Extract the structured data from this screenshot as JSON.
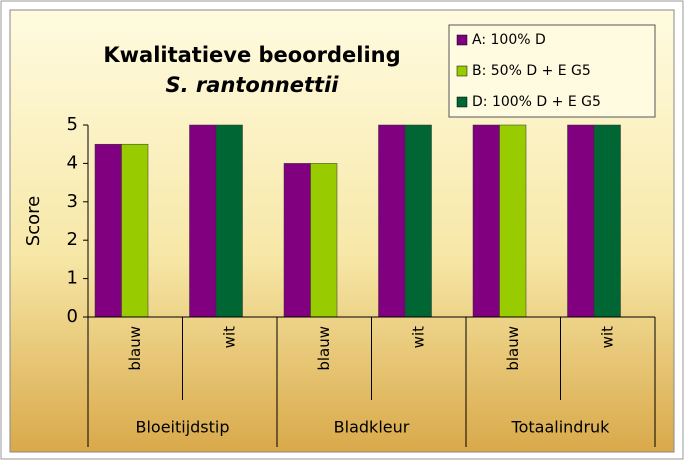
{
  "chart_data": {
    "type": "bar",
    "title": "Kwalitatieve beoordeling",
    "subtitle": "S. rantonnettii",
    "y_label": "Score",
    "categories": [
      "blauw",
      "wit",
      "blauw",
      "wit",
      "blauw",
      "wit"
    ],
    "groups": [
      "Bloeitijdstip",
      "Bladkleur",
      "Totaalindruk"
    ],
    "series": [
      {
        "name": "A: 100% D",
        "color": "#800080",
        "values": [
          4.5,
          5,
          4,
          5,
          5,
          5
        ]
      },
      {
        "name": "B: 50% D + E G5",
        "color": "#99cc00",
        "values": [
          4.5,
          null,
          4,
          null,
          5,
          null
        ]
      },
      {
        "name": "D: 100% D + E G5",
        "color": "#006633",
        "values": [
          null,
          5,
          null,
          5,
          null,
          5
        ]
      }
    ],
    "ylim": [
      0,
      5
    ],
    "yticks": [
      0,
      1,
      2,
      3,
      4,
      5
    ],
    "legend": "top-right",
    "grid": false
  }
}
